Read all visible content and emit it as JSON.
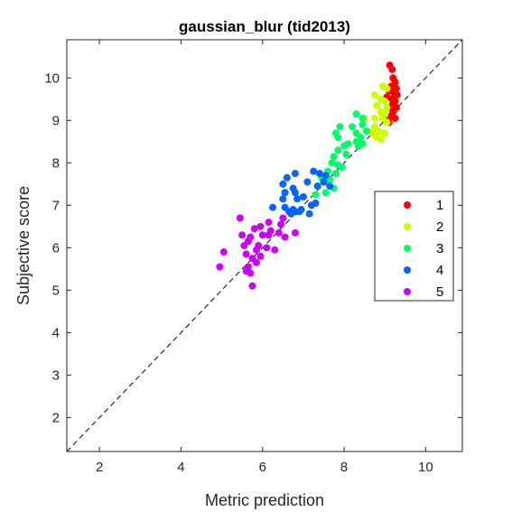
{
  "chart_data": {
    "type": "scatter",
    "title": "gaussian_blur (tid2013)",
    "xlabel": "Metric prediction",
    "ylabel": "Subjective score",
    "xlim": [
      1.2,
      10.9
    ],
    "ylim": [
      1.2,
      10.9
    ],
    "xticks": [
      2,
      4,
      6,
      8,
      10
    ],
    "yticks": [
      2,
      3,
      4,
      5,
      6,
      7,
      8,
      9,
      10
    ],
    "grid": false,
    "legend_position": "right",
    "reference_line": "identity (dashed)",
    "series": [
      {
        "name": "1",
        "color": "#ff0000",
        "points": [
          [
            9.12,
            10.3
          ],
          [
            9.18,
            10.2
          ],
          [
            9.2,
            10.0
          ],
          [
            9.25,
            9.9
          ],
          [
            9.15,
            9.8
          ],
          [
            9.28,
            9.75
          ],
          [
            9.1,
            9.7
          ],
          [
            9.22,
            9.65
          ],
          [
            9.3,
            9.6
          ],
          [
            9.05,
            9.55
          ],
          [
            9.18,
            9.5
          ],
          [
            9.25,
            9.45
          ],
          [
            9.2,
            9.4
          ],
          [
            9.1,
            9.3
          ],
          [
            9.28,
            9.3
          ],
          [
            9.2,
            9.2
          ],
          [
            9.15,
            9.1
          ],
          [
            9.25,
            9.05
          ],
          [
            9.1,
            8.95
          ]
        ]
      },
      {
        "name": "2",
        "color": "#ccff00",
        "points": [
          [
            8.95,
            9.8
          ],
          [
            9.05,
            9.75
          ],
          [
            8.75,
            9.6
          ],
          [
            8.9,
            9.5
          ],
          [
            9.0,
            9.45
          ],
          [
            8.8,
            9.35
          ],
          [
            9.05,
            9.3
          ],
          [
            8.9,
            9.2
          ],
          [
            9.0,
            9.15
          ],
          [
            8.5,
            9.05
          ],
          [
            8.75,
            9.05
          ],
          [
            8.95,
            9.05
          ],
          [
            9.05,
            8.95
          ],
          [
            8.75,
            8.85
          ],
          [
            8.85,
            8.75
          ],
          [
            9.0,
            8.7
          ],
          [
            8.7,
            8.7
          ],
          [
            8.8,
            8.6
          ],
          [
            8.9,
            8.55
          ]
        ]
      },
      {
        "name": "3",
        "color": "#00ff66",
        "points": [
          [
            8.3,
            9.15
          ],
          [
            8.45,
            9.05
          ],
          [
            7.9,
            8.85
          ],
          [
            8.2,
            8.85
          ],
          [
            8.45,
            8.9
          ],
          [
            8.55,
            8.75
          ],
          [
            7.8,
            8.7
          ],
          [
            8.3,
            8.7
          ],
          [
            8.4,
            8.6
          ],
          [
            7.85,
            8.6
          ],
          [
            8.3,
            8.5
          ],
          [
            8.1,
            8.45
          ],
          [
            8.45,
            8.45
          ],
          [
            8.35,
            8.4
          ],
          [
            8.0,
            8.4
          ],
          [
            7.85,
            8.3
          ],
          [
            8.05,
            8.2
          ],
          [
            7.75,
            8.15
          ],
          [
            7.7,
            8.0
          ],
          [
            7.85,
            7.95
          ],
          [
            7.95,
            7.9
          ],
          [
            7.6,
            7.8
          ],
          [
            7.8,
            7.75
          ],
          [
            7.45,
            7.65
          ],
          [
            7.65,
            7.6
          ],
          [
            7.55,
            7.55
          ],
          [
            7.35,
            7.45
          ],
          [
            7.75,
            7.4
          ],
          [
            7.55,
            7.3
          ],
          [
            7.3,
            7.25
          ]
        ]
      },
      {
        "name": "4",
        "color": "#0066ff",
        "points": [
          [
            6.8,
            7.75
          ],
          [
            7.25,
            7.8
          ],
          [
            7.4,
            7.75
          ],
          [
            6.6,
            7.65
          ],
          [
            7.55,
            7.7
          ],
          [
            7.1,
            7.55
          ],
          [
            7.5,
            7.55
          ],
          [
            7.35,
            7.45
          ],
          [
            6.5,
            7.5
          ],
          [
            7.65,
            7.45
          ],
          [
            6.75,
            7.4
          ],
          [
            6.55,
            7.3
          ],
          [
            6.8,
            7.3
          ],
          [
            7.0,
            7.2
          ],
          [
            6.5,
            7.15
          ],
          [
            6.85,
            7.15
          ],
          [
            7.3,
            7.05
          ],
          [
            7.2,
            7.0
          ],
          [
            6.25,
            6.95
          ],
          [
            6.55,
            6.95
          ],
          [
            6.75,
            6.9
          ],
          [
            6.65,
            6.85
          ],
          [
            6.8,
            6.85
          ],
          [
            6.95,
            6.9
          ],
          [
            6.9,
            6.85
          ],
          [
            6.7,
            6.8
          ],
          [
            7.15,
            6.8
          ]
        ]
      },
      {
        "name": "5",
        "color": "#cc00ff",
        "points": [
          [
            5.45,
            6.7
          ],
          [
            6.5,
            6.7
          ],
          [
            6.15,
            6.6
          ],
          [
            6.45,
            6.55
          ],
          [
            5.95,
            6.5
          ],
          [
            5.8,
            6.45
          ],
          [
            6.2,
            6.4
          ],
          [
            6.4,
            6.35
          ],
          [
            6.8,
            6.35
          ],
          [
            6.0,
            6.3
          ],
          [
            5.5,
            6.3
          ],
          [
            5.7,
            6.25
          ],
          [
            6.15,
            6.3
          ],
          [
            6.55,
            6.25
          ],
          [
            5.65,
            6.15
          ],
          [
            5.9,
            6.05
          ],
          [
            5.55,
            6.05
          ],
          [
            6.1,
            6.0
          ],
          [
            6.3,
            5.95
          ],
          [
            5.85,
            5.95
          ],
          [
            5.05,
            5.9
          ],
          [
            5.6,
            5.85
          ],
          [
            5.95,
            5.8
          ],
          [
            5.75,
            5.75
          ],
          [
            5.85,
            5.65
          ],
          [
            5.65,
            5.55
          ],
          [
            4.95,
            5.55
          ],
          [
            5.6,
            5.45
          ],
          [
            5.7,
            5.4
          ],
          [
            5.75,
            5.1
          ]
        ]
      }
    ]
  }
}
